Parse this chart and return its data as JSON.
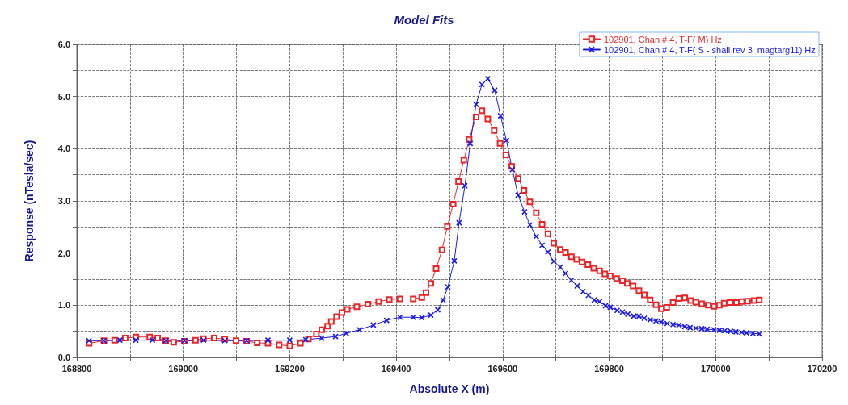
{
  "chart_data": {
    "type": "line",
    "title": "Model Fits",
    "xlabel": "Absolute X (m)",
    "ylabel": "Response (nTesla/sec)",
    "xlim": [
      168800,
      170200
    ],
    "xticks": [
      168800,
      {
        "value": 168900,
        "label": null
      },
      169000,
      {
        "value": 169100,
        "label": null
      },
      169200,
      {
        "value": 169300,
        "label": null
      },
      169400,
      {
        "value": 169500,
        "label": null
      },
      169600,
      {
        "value": 169700,
        "label": null
      },
      169800,
      {
        "value": 169900,
        "label": null
      },
      170000,
      {
        "value": 170100,
        "label": null
      },
      170200
    ],
    "ylim": [
      0,
      6
    ],
    "yticks": [
      {
        "value": 0,
        "label": "0.0"
      },
      {
        "value": 0.5,
        "label": null
      },
      {
        "value": 1,
        "label": "1.0"
      },
      {
        "value": 1.5,
        "label": null
      },
      {
        "value": 2,
        "label": "2.0"
      },
      {
        "value": 2.5,
        "label": null
      },
      {
        "value": 3,
        "label": "3.0"
      },
      {
        "value": 3.5,
        "label": null
      },
      {
        "value": 4,
        "label": "4.0"
      },
      {
        "value": 4.5,
        "label": null
      },
      {
        "value": 5,
        "label": "5.0"
      },
      {
        "value": 5.5,
        "label": null
      },
      {
        "value": 6,
        "label": "6.0"
      }
    ],
    "grid": true,
    "legend": "top right",
    "line_style": "solid",
    "series": [
      {
        "name": "102901, Chan # 4, T-F( M) Hz",
        "color": "#e8262a",
        "marker": "square",
        "x": [
          168823,
          168851,
          168871,
          168891,
          168911,
          168937,
          168952,
          168967,
          168982,
          169002,
          169023,
          169038,
          169058,
          169078,
          169099,
          169119,
          169139,
          169159,
          169180,
          169200,
          169220,
          169235,
          169250,
          169260,
          169271,
          169278,
          169288,
          169298,
          169308,
          169326,
          169347,
          169367,
          169387,
          169407,
          169432,
          169448,
          169456,
          169465,
          169475,
          169486,
          169496,
          169507,
          169517,
          169527,
          169537,
          169550,
          169561,
          169572,
          169584,
          169595,
          169606,
          169617,
          169629,
          169640,
          169651,
          169663,
          169674,
          169685,
          169696,
          169708,
          169718,
          169729,
          169739,
          169749,
          169760,
          169771,
          169782,
          169792,
          169802,
          169814,
          169825,
          169834,
          169845,
          169856,
          169866,
          169877,
          169888,
          169898,
          169908,
          169920,
          169931,
          169942,
          169953,
          169963,
          169974,
          169986,
          169997,
          170007,
          170016,
          170027,
          170039,
          170049,
          170060,
          170072,
          170082
        ],
        "values": [
          0.27,
          0.32,
          0.33,
          0.37,
          0.39,
          0.39,
          0.37,
          0.32,
          0.29,
          0.31,
          0.33,
          0.36,
          0.37,
          0.35,
          0.32,
          0.31,
          0.28,
          0.27,
          0.24,
          0.22,
          0.27,
          0.35,
          0.45,
          0.53,
          0.6,
          0.69,
          0.78,
          0.86,
          0.92,
          0.97,
          1.02,
          1.07,
          1.11,
          1.12,
          1.12,
          1.15,
          1.24,
          1.42,
          1.7,
          2.06,
          2.51,
          2.94,
          3.37,
          3.78,
          4.18,
          4.61,
          4.73,
          4.57,
          4.35,
          4.1,
          3.88,
          3.66,
          3.43,
          3.2,
          2.98,
          2.77,
          2.55,
          2.37,
          2.19,
          2.07,
          2.01,
          1.93,
          1.88,
          1.83,
          1.78,
          1.71,
          1.66,
          1.6,
          1.56,
          1.51,
          1.47,
          1.42,
          1.37,
          1.28,
          1.2,
          1.1,
          1.01,
          0.93,
          0.96,
          1.05,
          1.13,
          1.14,
          1.09,
          1.06,
          1.03,
          1.0,
          0.98,
          1.0,
          1.04,
          1.05,
          1.05,
          1.07,
          1.08,
          1.09,
          1.1
        ]
      },
      {
        "name": "102901, Chan # 4, T-F( S - shall rev 3  magtarg11) Hz",
        "color": "#1a1ae6",
        "marker": "cross",
        "x": [
          168823,
          168851,
          168881,
          168911,
          168942,
          168967,
          169002,
          169038,
          169078,
          169119,
          169159,
          169200,
          169230,
          169260,
          169286,
          169306,
          169331,
          169357,
          169382,
          169407,
          169432,
          169448,
          169465,
          169478,
          169488,
          169497,
          169509,
          169518,
          169529,
          169539,
          169550,
          169561,
          169572,
          169585,
          169596,
          169607,
          169618,
          169629,
          169641,
          169651,
          169663,
          169674,
          169685,
          169696,
          169708,
          169718,
          169729,
          169740,
          169751,
          169761,
          169772,
          169782,
          169793,
          169802,
          169815,
          169825,
          169835,
          169846,
          169856,
          169866,
          169877,
          169888,
          169898,
          169909,
          169920,
          169931,
          169942,
          169952,
          169963,
          169974,
          169984,
          169997,
          170007,
          170017,
          170028,
          170038,
          170049,
          170058,
          170070,
          170082
        ],
        "values": [
          0.32,
          0.32,
          0.33,
          0.33,
          0.33,
          0.32,
          0.32,
          0.33,
          0.32,
          0.32,
          0.33,
          0.33,
          0.34,
          0.37,
          0.4,
          0.46,
          0.53,
          0.62,
          0.71,
          0.77,
          0.77,
          0.76,
          0.81,
          0.91,
          1.1,
          1.35,
          1.85,
          2.58,
          3.29,
          4.1,
          4.85,
          5.23,
          5.34,
          5.12,
          4.63,
          4.16,
          3.6,
          3.11,
          2.79,
          2.54,
          2.32,
          2.15,
          2.02,
          1.84,
          1.73,
          1.61,
          1.48,
          1.37,
          1.26,
          1.19,
          1.1,
          1.07,
          0.99,
          0.96,
          0.9,
          0.87,
          0.83,
          0.79,
          0.79,
          0.75,
          0.72,
          0.7,
          0.68,
          0.65,
          0.63,
          0.62,
          0.59,
          0.57,
          0.56,
          0.55,
          0.54,
          0.53,
          0.52,
          0.51,
          0.5,
          0.49,
          0.48,
          0.47,
          0.46,
          0.45
        ]
      }
    ]
  }
}
